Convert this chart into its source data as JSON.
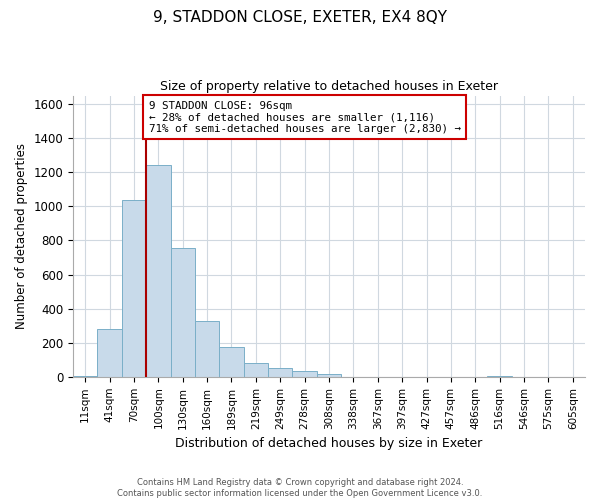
{
  "title": "9, STADDON CLOSE, EXETER, EX4 8QY",
  "subtitle": "Size of property relative to detached houses in Exeter",
  "xlabel": "Distribution of detached houses by size in Exeter",
  "ylabel": "Number of detached properties",
  "bin_labels": [
    "11sqm",
    "41sqm",
    "70sqm",
    "100sqm",
    "130sqm",
    "160sqm",
    "189sqm",
    "219sqm",
    "249sqm",
    "278sqm",
    "308sqm",
    "338sqm",
    "367sqm",
    "397sqm",
    "427sqm",
    "457sqm",
    "486sqm",
    "516sqm",
    "546sqm",
    "575sqm",
    "605sqm"
  ],
  "bar_values": [
    5,
    280,
    1035,
    1240,
    755,
    325,
    175,
    80,
    50,
    35,
    15,
    0,
    0,
    0,
    0,
    0,
    0,
    5,
    0,
    0,
    0
  ],
  "bar_color": "#c8daea",
  "bar_edge_color": "#7aafc8",
  "vline_color": "#aa0000",
  "annotation_text": "9 STADDON CLOSE: 96sqm\n← 28% of detached houses are smaller (1,116)\n71% of semi-detached houses are larger (2,830) →",
  "annotation_box_color": "white",
  "annotation_box_edge": "#cc0000",
  "ylim": [
    0,
    1650
  ],
  "yticks": [
    0,
    200,
    400,
    600,
    800,
    1000,
    1200,
    1400,
    1600
  ],
  "footer_line1": "Contains HM Land Registry data © Crown copyright and database right 2024.",
  "footer_line2": "Contains public sector information licensed under the Open Government Licence v3.0.",
  "bg_color": "white",
  "grid_color": "#d0d8e0"
}
